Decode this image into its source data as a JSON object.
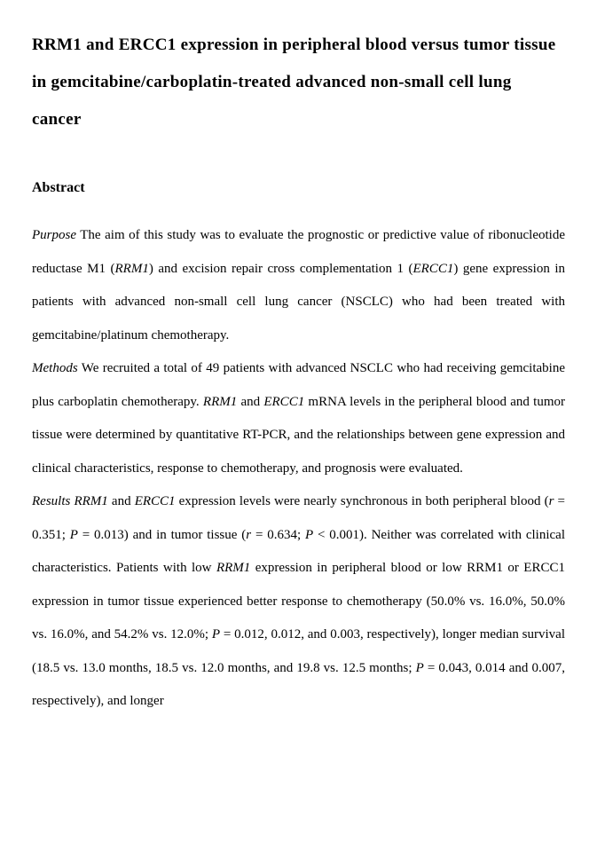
{
  "title": "RRM1 and ERCC1 expression in peripheral blood versus tumor tissue in gemcitabine/carboplatin-treated advanced non-small cell lung cancer",
  "abstract_heading": "Abstract",
  "purpose_label": "Purpose",
  "purpose_1": "   The aim of this study was to evaluate the prognostic or predictive value of ribonucleotide reductase M1 (",
  "purpose_gene1": "RRM1",
  "purpose_2": ") and excision repair cross complementation 1 (",
  "purpose_gene2": "ERCC1",
  "purpose_3": ") gene expression in patients with advanced non-small cell lung cancer (NSCLC) who had been treated with gemcitabine/platinum chemotherapy.",
  "methods_label": "Methods",
  "methods_1": "   We recruited a total of 49 patients with advanced NSCLC who had receiving gemcitabine plus carboplatin chemotherapy. ",
  "methods_gene1": "RRM1",
  "methods_2": " and ",
  "methods_gene2": "ERCC1",
  "methods_3": " mRNA levels in the peripheral blood and tumor tissue were determined by quantitative RT-PCR, and the relationships between gene expression and clinical characteristics, response to chemotherapy, and prognosis were evaluated.",
  "results_label": "Results",
  "results_gap": "    ",
  "results_gene1": "RRM1",
  "results_1": " and ",
  "results_gene2": "ERCC1",
  "results_2": " expression levels were nearly synchronous in both peripheral blood (",
  "results_r1": "r",
  "results_3": " = 0.351; ",
  "results_P1": "P",
  "results_4": " = 0.013) and in tumor tissue (",
  "results_r2": "r",
  "results_5": " = 0.634; ",
  "results_P2": "P",
  "results_6": " < 0.001). Neither was correlated with clinical characteristics. Patients with low ",
  "results_gene3": "RRM1",
  "results_7": " expression in peripheral blood or low RRM1 or ERCC1 expression in tumor tissue experienced better response to chemotherapy (50.0% vs. 16.0%, 50.0% vs. 16.0%, and 54.2% vs. 12.0%; ",
  "results_P3": "P",
  "results_8": " = 0.012, 0.012, and 0.003, respectively), longer median survival (18.5 vs. 13.0 months, 18.5 vs. 12.0 months, and 19.8 vs. 12.5 months; ",
  "results_P4": "P",
  "results_9": " = 0.043, 0.014 and 0.007, respectively), and longer"
}
